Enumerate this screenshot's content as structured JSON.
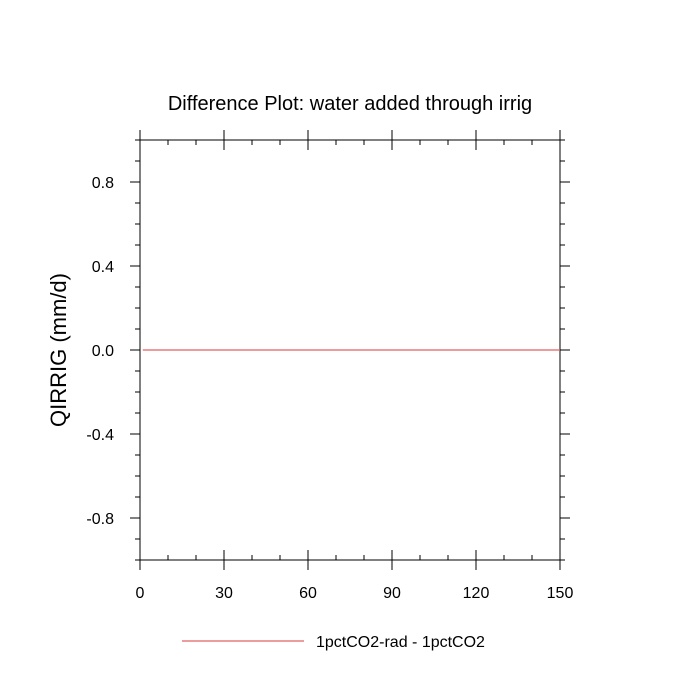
{
  "chart_data": {
    "type": "line",
    "title": "Difference Plot: water added through irrig",
    "xlabel": "",
    "ylabel": "QIRRIG  (mm/d)",
    "xlim": [
      0,
      150
    ],
    "ylim": [
      -1,
      1
    ],
    "x_ticks": [
      0,
      30,
      60,
      90,
      120,
      150
    ],
    "x_tick_labels": [
      "0",
      "30",
      "60",
      "90",
      "120",
      "150"
    ],
    "y_ticks": [
      0.8,
      0.4,
      0.0,
      -0.4,
      -0.8
    ],
    "y_tick_labels": [
      "0.8",
      "0.4",
      "0.0",
      "-0.4",
      "-0.8"
    ],
    "grid": false,
    "legend_position": "bottom",
    "series": [
      {
        "name": "1pctCO2-rad - 1pctCO2",
        "color": "#e06060",
        "x": [
          1,
          150
        ],
        "y": [
          0.0,
          0.0
        ]
      }
    ]
  }
}
